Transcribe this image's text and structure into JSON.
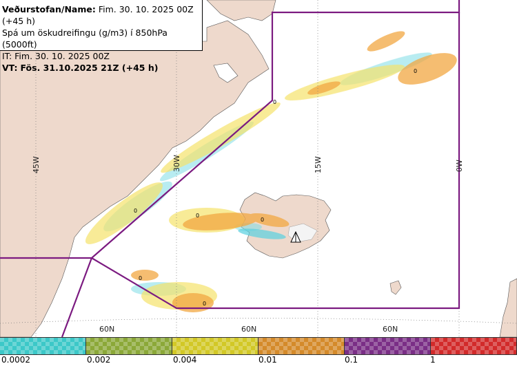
{
  "info": {
    "line1_label": "Veðurstofan/Name:",
    "line1_value": "Fim. 30. 10. 2025 00Z (+45 h)",
    "line2": "Spá um öskudreifingu (g/m3) í 850hPa (5000ft)",
    "line3": "IT: Fim. 30. 10. 2025 00Z",
    "line4_label": "VT:",
    "line4_value": "Fös. 31.10.2025 21Z (+45 h)"
  },
  "map": {
    "lon_labels": [
      "45W",
      "30W",
      "15W",
      "0W"
    ],
    "lat_labels": [
      "60N",
      "60N",
      "60N"
    ],
    "contour_labels": [
      "0",
      "0",
      "0",
      "0",
      "0",
      "0",
      "0"
    ],
    "colors": {
      "land": "#eed9cc",
      "sea": "#ffffff",
      "boundary": "#7b1a80",
      "ash_low": "#7fdce6",
      "ash_mid": "#f5e26a",
      "ash_high": "#f2a742"
    }
  },
  "legend": {
    "labels": [
      "0.0002",
      "0.002",
      "0.004",
      "0.01",
      "0.1",
      "1"
    ],
    "colors": [
      "#3cc8c8",
      "#8ba838",
      "#d2c826",
      "#d48a2a",
      "#7a2e86",
      "#d22a2a"
    ]
  }
}
